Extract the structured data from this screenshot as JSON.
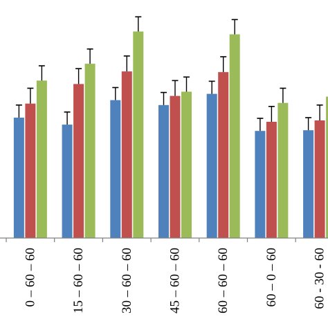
{
  "chart_data": {
    "type": "bar",
    "categories": [
      "0 – 60 – 60",
      "15 – 60 – 60",
      "30 – 60 – 60",
      "45 – 60 – 60",
      "60 – 60 – 60",
      "60 – 0 – 60",
      "60 - 30 - 60"
    ],
    "ylim": [
      0,
      340
    ],
    "grid": false,
    "legend": "none",
    "series": [
      {
        "color": "#4F81BD",
        "values": [
          172,
          162,
          197,
          190,
          206,
          153,
          154
        ],
        "errors": [
          18,
          18,
          18,
          18,
          18,
          18,
          18
        ]
      },
      {
        "color": "#C0504D",
        "values": [
          192,
          220,
          238,
          203,
          237,
          166,
          168
        ],
        "errors": [
          22,
          22,
          22,
          22,
          22,
          22,
          22
        ]
      },
      {
        "color": "#9BBB59",
        "values": [
          225,
          249,
          295,
          209,
          291,
          193,
          202
        ],
        "errors": [
          21,
          21,
          21,
          21,
          21,
          21,
          21
        ]
      }
    ]
  }
}
